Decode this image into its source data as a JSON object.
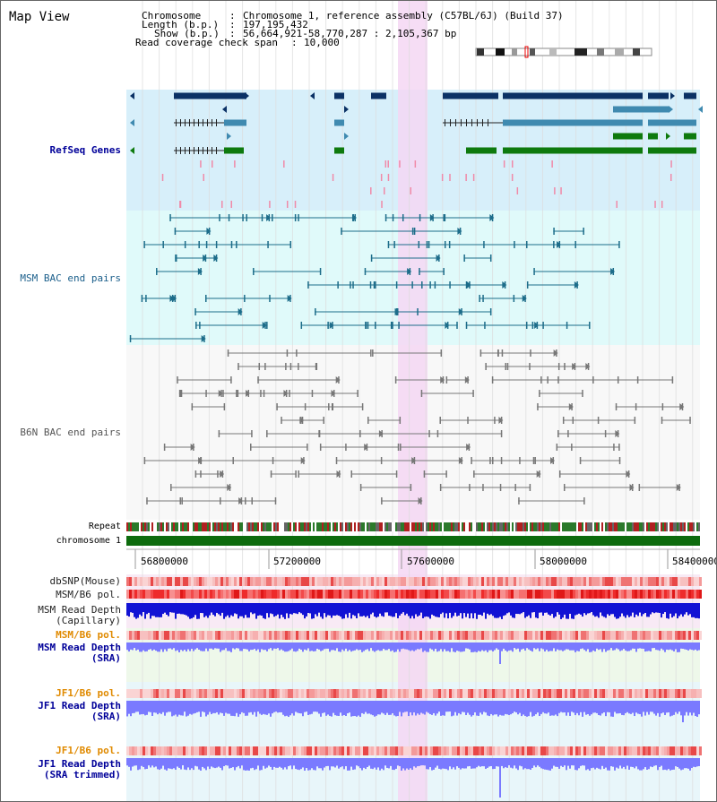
{
  "view": {
    "title": "Map View",
    "chromosome_key": "Chromosome",
    "chromosome_value": "Chromosome 1, reference assembly (C57BL/6J) (Build 37)",
    "length_key": "Length (b.p.)",
    "length_value": "197,195,432",
    "show_key": "Show (b.p.)",
    "show_value": "56,664,921-58,770,287 : 2,105,367 bp",
    "coverage_key": "Read coverage check span",
    "coverage_value": "10,000"
  },
  "tracks": {
    "refseq": "RefSeq Genes",
    "msm_bac": "MSM BAC end pairs",
    "b6n_bac": "B6N BAC end pairs",
    "repeat": "Repeat",
    "chromosome": "chromosome 1",
    "dbsnp": "dbSNP(Mouse)",
    "msm_b6_pol_1": "MSM/B6 pol.",
    "msm_depth_cap_1": "MSM Read Depth",
    "msm_depth_cap_2": "(Capillary)",
    "msm_b6_pol_2": "MSM/B6 pol.",
    "msm_depth_sra_1": "MSM Read Depth",
    "msm_depth_sra_2": "(SRA)",
    "jf1_b6_pol_1": "JF1/B6 pol.",
    "jf1_depth_sra_1": "JF1 Read Depth",
    "jf1_depth_sra_2": "(SRA)",
    "jf1_b6_pol_2": "JF1/B6 pol.",
    "jf1_depth_trim_1": "JF1 Read Depth",
    "jf1_depth_trim_2": "(SRA trimmed)"
  },
  "axis": {
    "ticks": [
      "56800000",
      "57200000",
      "57600000",
      "58000000",
      "58400000"
    ]
  },
  "colors": {
    "refseq_bg": "#d7effa",
    "msm_bg": "#e0fafa",
    "b6n_bg": "#f8f8f8",
    "highlight": "#f5d7f3",
    "refseq_dark": "#0b3165",
    "refseq_mid": "#3f8ab0",
    "refseq_green": "#0e7a0e",
    "msm_line": "#1d6d8a",
    "b6n_line": "#777777",
    "chromosome_bar": "#0d6b0d",
    "label_blue": "#000099",
    "label_teal": "#1b5f8b",
    "label_orange": "#e08a00",
    "depth_dark": "#1212d4",
    "depth_light": "#7a7aff"
  }
}
